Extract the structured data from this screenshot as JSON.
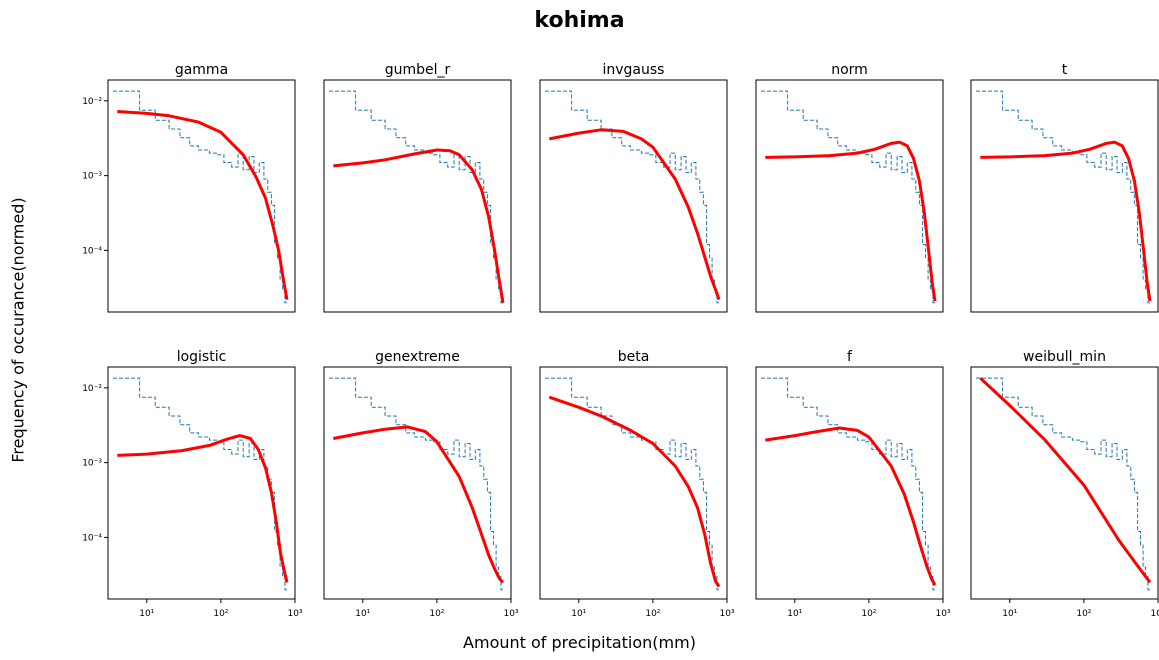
{
  "figure": {
    "title": "kohima",
    "xlabel": "Amount of precipitation(mm)",
    "ylabel": "Frequency of occurance(normed)"
  },
  "chart_data": {
    "type": "line",
    "xscale": "log",
    "yscale": "log",
    "xlim": [
      3,
      1000
    ],
    "ylim": [
      1.5e-05,
      0.019
    ],
    "x_ticks": [
      10,
      100,
      1000
    ],
    "x_tick_labels": [
      "10¹",
      "10²",
      "10³"
    ],
    "y_ticks": [
      0.0001,
      0.001,
      0.01
    ],
    "y_tick_labels": [
      "10⁻⁴",
      "10⁻³",
      "10⁻²"
    ],
    "histogram_color": "#1f77b4",
    "fit_color": "#ff0000",
    "histogram": {
      "description": "shared empirical histogram (dashed step) of precipitation",
      "edges": [
        3.5,
        8,
        13,
        20,
        28,
        38,
        50,
        70,
        90,
        110,
        140,
        170,
        200,
        240,
        280,
        330,
        380,
        430,
        480,
        530,
        580,
        630,
        680,
        730,
        780
      ],
      "values": [
        0.0135,
        0.0075,
        0.0055,
        0.0042,
        0.0032,
        0.0025,
        0.0022,
        0.002,
        0.0019,
        0.0015,
        0.0013,
        0.002,
        0.0012,
        0.0018,
        0.0011,
        0.0015,
        0.0009,
        0.0006,
        0.0004,
        0.00012,
        8e-05,
        4e-05,
        3e-05,
        2e-05
      ]
    },
    "panels": [
      {
        "name": "gamma",
        "fit_x": [
          4,
          10,
          20,
          50,
          100,
          200,
          300,
          400,
          500,
          600,
          700,
          780
        ],
        "fit_y": [
          0.0072,
          0.0068,
          0.0063,
          0.0052,
          0.0038,
          0.0019,
          0.00095,
          0.0005,
          0.00022,
          0.0001,
          4e-05,
          2.2e-05
        ]
      },
      {
        "name": "gumbel_r",
        "fit_x": [
          4,
          10,
          20,
          50,
          100,
          150,
          200,
          300,
          400,
          500,
          600,
          700,
          780
        ],
        "fit_y": [
          0.00135,
          0.00148,
          0.00163,
          0.00195,
          0.0022,
          0.00215,
          0.0019,
          0.0012,
          0.00065,
          0.00028,
          0.0001,
          3.8e-05,
          2e-05
        ]
      },
      {
        "name": "invgauss",
        "fit_x": [
          4,
          10,
          20,
          40,
          70,
          100,
          200,
          300,
          400,
          500,
          600,
          700,
          780
        ],
        "fit_y": [
          0.0031,
          0.0037,
          0.0041,
          0.0039,
          0.0031,
          0.0024,
          0.0009,
          0.00038,
          0.00017,
          8.2e-05,
          4.5e-05,
          3e-05,
          2.2e-05
        ]
      },
      {
        "name": "norm",
        "fit_x": [
          4,
          10,
          30,
          70,
          120,
          200,
          260,
          330,
          400,
          480,
          560,
          640,
          720,
          780
        ],
        "fit_y": [
          0.00175,
          0.00178,
          0.00185,
          0.002,
          0.00225,
          0.0027,
          0.0028,
          0.0025,
          0.0017,
          0.00085,
          0.00032,
          0.0001,
          3.5e-05,
          2.1e-05
        ]
      },
      {
        "name": "t",
        "fit_x": [
          4,
          10,
          30,
          70,
          120,
          200,
          260,
          330,
          400,
          480,
          560,
          640,
          720,
          780
        ],
        "fit_y": [
          0.00175,
          0.00178,
          0.00185,
          0.002,
          0.00225,
          0.0027,
          0.0028,
          0.0025,
          0.0017,
          0.00085,
          0.00032,
          0.0001,
          3.5e-05,
          2.1e-05
        ]
      },
      {
        "name": "logistic",
        "fit_x": [
          4,
          10,
          30,
          70,
          120,
          180,
          250,
          320,
          400,
          480,
          560,
          640,
          720,
          780
        ],
        "fit_y": [
          0.00125,
          0.0013,
          0.00145,
          0.0017,
          0.00205,
          0.0023,
          0.0021,
          0.0015,
          0.00085,
          0.0004,
          0.00016,
          6e-05,
          3.5e-05,
          2.5e-05
        ]
      },
      {
        "name": "genextreme",
        "fit_x": [
          4,
          10,
          20,
          40,
          70,
          100,
          200,
          300,
          400,
          500,
          600,
          700,
          780
        ],
        "fit_y": [
          0.0021,
          0.0025,
          0.0028,
          0.003,
          0.0026,
          0.0019,
          0.00065,
          0.00025,
          0.00011,
          5.8e-05,
          3.8e-05,
          2.8e-05,
          2.5e-05
        ]
      },
      {
        "name": "beta",
        "fit_x": [
          4,
          10,
          20,
          50,
          100,
          200,
          300,
          400,
          500,
          600,
          700,
          780
        ],
        "fit_y": [
          0.0075,
          0.0055,
          0.0042,
          0.0027,
          0.0018,
          0.0009,
          0.00048,
          0.00025,
          0.00011,
          4.5e-05,
          2.6e-05,
          2.2e-05
        ]
      },
      {
        "name": "f",
        "fit_x": [
          4,
          10,
          20,
          40,
          70,
          100,
          200,
          300,
          400,
          500,
          600,
          700,
          780
        ],
        "fit_y": [
          0.002,
          0.0023,
          0.0026,
          0.0029,
          0.0027,
          0.0022,
          0.0009,
          0.00038,
          0.00016,
          7.5e-05,
          4.2e-05,
          2.8e-05,
          2.3e-05
        ]
      },
      {
        "name": "weibull_min",
        "fit_x": [
          4,
          10,
          30,
          100,
          300,
          500,
          780
        ],
        "fit_y": [
          0.0135,
          0.0058,
          0.002,
          0.0005,
          9e-05,
          4.5e-05,
          2.5e-05
        ]
      }
    ]
  }
}
